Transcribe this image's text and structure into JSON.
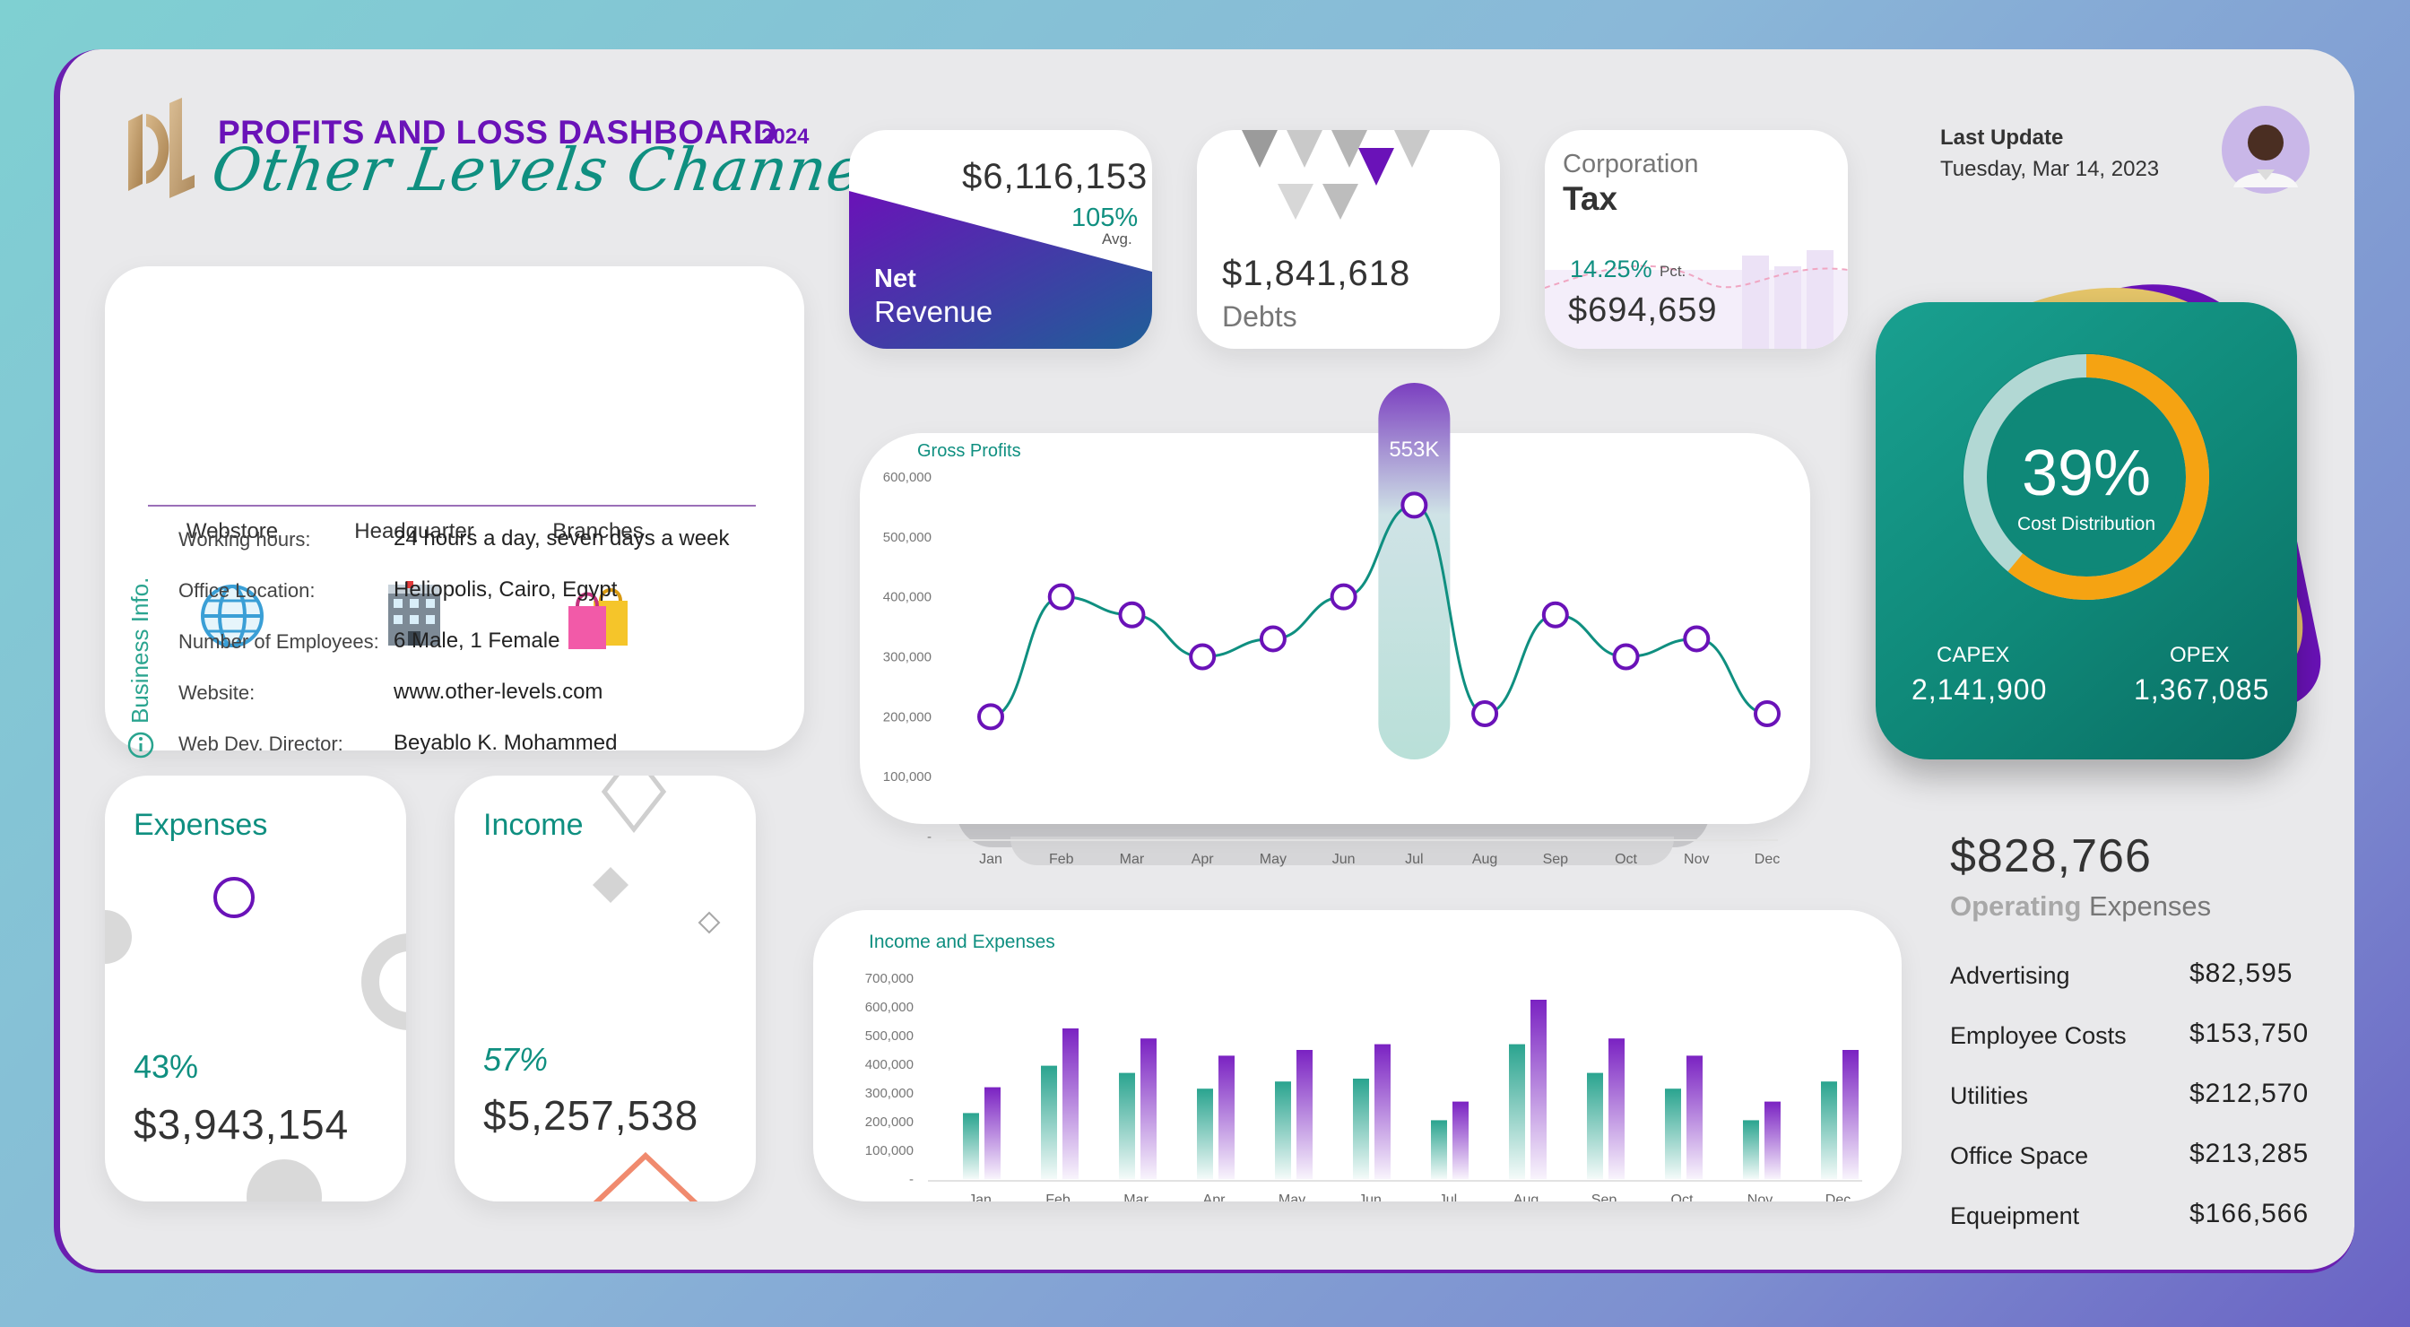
{
  "header": {
    "title": "PROFITS AND LOSS DASHBOARD",
    "year": "2024",
    "subtitle": "Other Levels Channel",
    "last_update_label": "Last Update",
    "last_update_date": "Tuesday, Mar 14, 2023"
  },
  "business": {
    "vertical_label": "Business Info.",
    "channels": [
      "Webstore",
      "Headquarter",
      "Branches"
    ],
    "info": [
      {
        "label": "Working hours:",
        "value": "24 hours a day, seven days a week"
      },
      {
        "label": "Office Location:",
        "value": "Heliopolis, Cairo, Egypt"
      },
      {
        "label": "Number of Employees:",
        "value": "6 Male, 1 Female"
      },
      {
        "label": "Website:",
        "value": "www.other-levels.com"
      },
      {
        "label": "Web Dev. Director:",
        "value": "Beyablo K. Mohammed"
      }
    ]
  },
  "net_revenue": {
    "value": "$6,116,153",
    "pct": "105%",
    "pct_note": "Avg.",
    "label_top": "Net",
    "label_bottom": "Revenue"
  },
  "debts": {
    "value": "$1,841,618",
    "label": "Debts"
  },
  "tax": {
    "label_top": "Corporation",
    "label_bottom": "Tax",
    "pct": "14.25%",
    "pct_note": "Pct.",
    "value": "$694,659"
  },
  "cost_distribution": {
    "pct": "39%",
    "pct_value": 39,
    "label": "Cost Distribution",
    "capex_label": "CAPEX",
    "capex_value": "2,141,900",
    "opex_label": "OPEX",
    "opex_value": "1,367,085",
    "colors": {
      "ring": "#f5a312",
      "track": "#cfe6e4",
      "card": "#11917f"
    }
  },
  "expenses": {
    "title": "Expenses",
    "pct": "43%",
    "value": "$3,943,154"
  },
  "income": {
    "title": "Income",
    "pct": "57%",
    "value": "$5,257,538"
  },
  "operating": {
    "value": "$828,766",
    "label_bold": "Operating",
    "label_rest": "Expenses",
    "items": [
      {
        "label": "Advertising",
        "value": "$82,595"
      },
      {
        "label": "Employee Costs",
        "value": "$153,750"
      },
      {
        "label": "Utilities",
        "value": "$212,570"
      },
      {
        "label": "Office Space",
        "value": "$213,285"
      },
      {
        "label": "Equeipment",
        "value": "$166,566"
      }
    ]
  },
  "chart_data": [
    {
      "type": "line",
      "title": "Gross Profits",
      "categories": [
        "Jan",
        "Feb",
        "Mar",
        "Apr",
        "May",
        "Jun",
        "Jul",
        "Aug",
        "Sep",
        "Oct",
        "Nov",
        "Dec"
      ],
      "values": [
        200000,
        400000,
        370000,
        300000,
        330000,
        400000,
        553000,
        205000,
        370000,
        300000,
        330000,
        205000
      ],
      "ylim": [
        0,
        600000
      ],
      "yticks": [
        "-",
        "100,000",
        "200,000",
        "300,000",
        "400,000",
        "500,000",
        "600,000"
      ],
      "highlight": {
        "category": "Jul",
        "label": "553K"
      },
      "colors": {
        "line": "#0f8f80",
        "marker": "#6a12b8"
      }
    },
    {
      "type": "bar",
      "title": "Income and Expenses",
      "categories": [
        "Jan",
        "Feb",
        "Mar",
        "Apr",
        "May",
        "Jun",
        "Jul",
        "Aug",
        "Sep",
        "Oct",
        "Nov",
        "Dec"
      ],
      "series": [
        {
          "values": [
            230000,
            395000,
            370000,
            315000,
            340000,
            350000,
            205000,
            470000,
            370000,
            315000,
            205000,
            340000
          ],
          "color": "#2aa48f"
        },
        {
          "values": [
            320000,
            525000,
            490000,
            430000,
            450000,
            470000,
            270000,
            625000,
            490000,
            430000,
            270000,
            450000
          ],
          "color": "#7a22c2"
        }
      ],
      "ylim": [
        0,
        700000
      ],
      "yticks": [
        "-",
        "100,000",
        "200,000",
        "300,000",
        "400,000",
        "500,000",
        "600,000",
        "700,000"
      ]
    }
  ]
}
